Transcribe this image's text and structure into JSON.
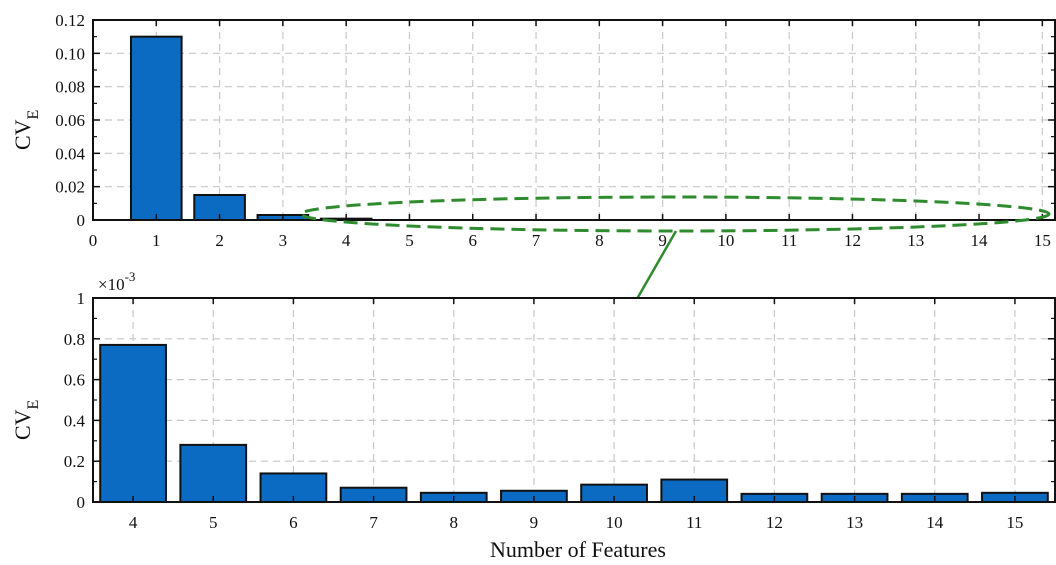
{
  "colors": {
    "bar": "#0b6bc2",
    "bar_edge": "#111111",
    "grid": "#c8c8c8",
    "annotation": "#2e8b2e"
  },
  "chart_data": [
    {
      "type": "bar",
      "x": [
        1,
        2,
        3,
        4
      ],
      "values": [
        0.11,
        0.015,
        0.003,
        0.0008
      ],
      "xlim": [
        0,
        15.2
      ],
      "ylim": [
        0,
        0.12
      ],
      "xticks": [
        "0",
        "1",
        "2",
        "3",
        "4",
        "5",
        "6",
        "7",
        "8",
        "9",
        "10",
        "11",
        "12",
        "13",
        "14",
        "15"
      ],
      "yticks": [
        "0",
        "0.02",
        "0.04",
        "0.06",
        "0.08",
        "0.10",
        "0.12"
      ],
      "ylabel_main": "CV",
      "ylabel_sub": "E",
      "grid": true
    },
    {
      "type": "bar",
      "categories": [
        "4",
        "5",
        "6",
        "7",
        "8",
        "9",
        "10",
        "11",
        "12",
        "13",
        "14",
        "15"
      ],
      "values": [
        0.77,
        0.28,
        0.14,
        0.07,
        0.045,
        0.055,
        0.085,
        0.11,
        0.04,
        0.04,
        0.04,
        0.045
      ],
      "ylim": [
        0,
        1
      ],
      "yticks": [
        "0",
        "0.2",
        "0.4",
        "0.6",
        "0.8",
        "1"
      ],
      "scale_base": "×10",
      "scale_exp": "-3",
      "xlabel": "Number of Features",
      "ylabel_main": "CV",
      "ylabel_sub": "E",
      "grid": true
    }
  ]
}
